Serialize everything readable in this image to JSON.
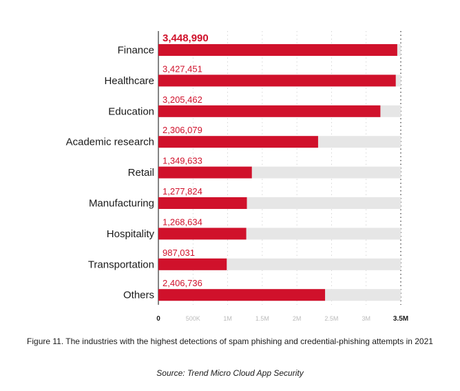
{
  "chart_data": {
    "type": "bar",
    "orientation": "horizontal",
    "categories": [
      "Finance",
      "Healthcare",
      "Education",
      "Academic research",
      "Retail",
      "Manufacturing",
      "Hospitality",
      "Transportation",
      "Others"
    ],
    "values": [
      3448990,
      3427451,
      3205462,
      2306079,
      1349633,
      1277824,
      1268634,
      987031,
      2406736
    ],
    "value_labels": [
      "3,448,990",
      "3,427,451",
      "3,205,462",
      "2,306,079",
      "1,349,633",
      "1,277,824",
      "1,268,634",
      "987,031",
      "2,406,736"
    ],
    "xlim": [
      0,
      3500000
    ],
    "x_ticks": [
      0,
      500000,
      1000000,
      1500000,
      2000000,
      2500000,
      3000000,
      3500000
    ],
    "x_tick_labels": [
      "0",
      "500K",
      "1M",
      "1.5M",
      "2M",
      "2.5M",
      "3M",
      "3.5M"
    ],
    "bar_color": "#d0112b",
    "track_color": "#e6e6e6",
    "grid": true
  },
  "caption": {
    "main": "Figure 11. The industries with the highest detections of spam phishing and credential-phishing attempts in 2021",
    "source": "Source: Trend Micro Cloud App Security"
  }
}
